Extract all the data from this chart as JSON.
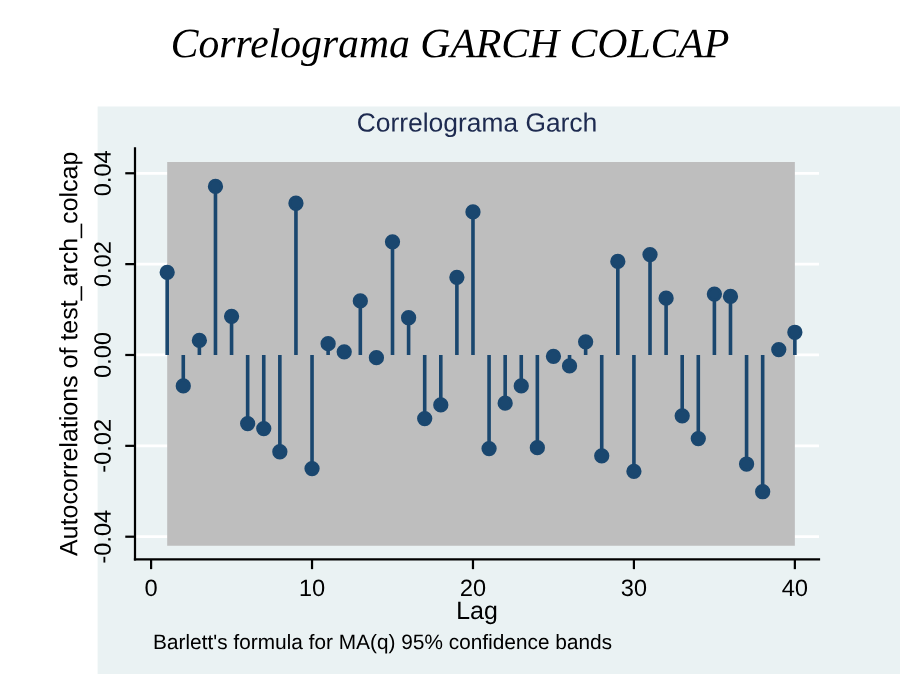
{
  "chart_data": {
    "type": "lollipop",
    "title": "Correlograma GARCH COLCAP",
    "subtitle": "Correlograma Garch",
    "xlabel": "Lag",
    "ylabel": "Autocorrelations of test_arch_colcap",
    "annotations": [
      "Barlett's formula for MA(q) 95% confidence bands"
    ],
    "x": [
      1,
      2,
      3,
      4,
      5,
      6,
      7,
      8,
      9,
      10,
      11,
      12,
      13,
      14,
      15,
      16,
      17,
      18,
      19,
      20,
      21,
      22,
      23,
      24,
      25,
      26,
      27,
      28,
      29,
      30,
      31,
      32,
      33,
      34,
      35,
      36,
      37,
      38,
      39,
      40
    ],
    "series": [
      {
        "color": "#1a476f",
        "values": [
          0.0182,
          -0.0068,
          0.0032,
          0.0371,
          0.0085,
          -0.0151,
          -0.0162,
          -0.0213,
          0.0334,
          -0.025,
          0.0025,
          0.0007,
          0.0119,
          -0.0006,
          0.0249,
          0.0082,
          -0.014,
          -0.011,
          0.0171,
          0.0315,
          -0.0206,
          -0.0106,
          -0.0068,
          -0.0204,
          -0.0003,
          -0.0024,
          0.0029,
          -0.0222,
          0.0206,
          -0.0256,
          0.0221,
          0.0125,
          -0.0134,
          -0.0184,
          0.0134,
          0.0129,
          -0.024,
          -0.0301,
          0.0012,
          0.005
        ]
      }
    ],
    "bands": [
      {
        "axis": "y",
        "from": -0.042,
        "to": 0.0425,
        "color": "#bebebe"
      }
    ],
    "xlim": [
      -1,
      41.5
    ],
    "xticks": [
      0,
      10,
      20,
      30,
      40
    ],
    "ylim": [
      -0.045,
      0.0455
    ],
    "yticks": [
      {
        "value": -0.04,
        "label": "-0.04"
      },
      {
        "value": -0.02,
        "label": "-0.02"
      },
      {
        "value": 0,
        "label": "0.00"
      },
      {
        "value": 0.02,
        "label": "0.02"
      },
      {
        "value": 0.04,
        "label": "0.04"
      }
    ],
    "grid": "y",
    "marker": "circle"
  }
}
